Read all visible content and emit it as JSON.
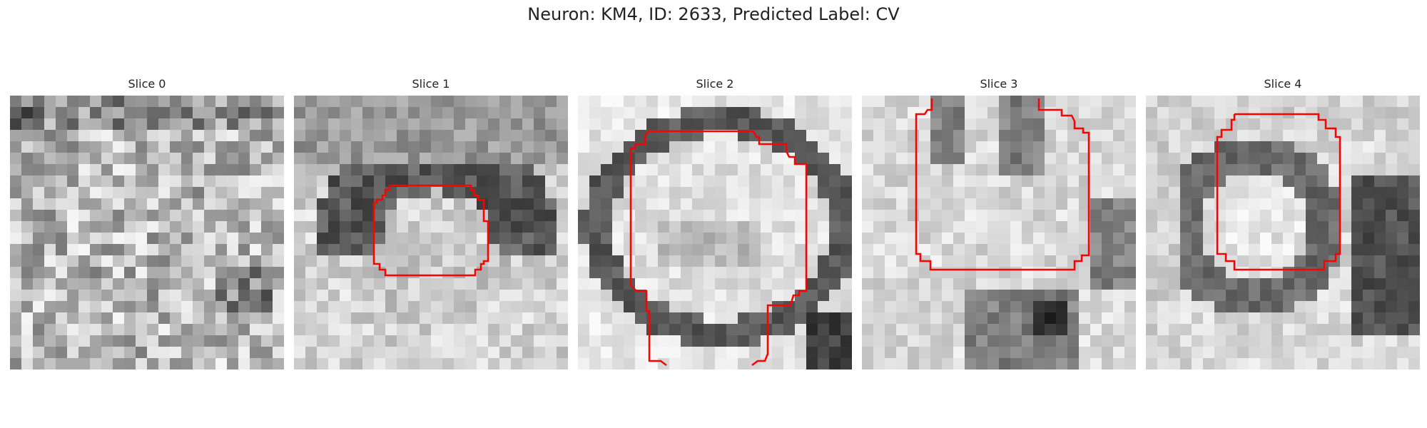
{
  "title": "Neuron: KM4, ID: 2633, Predicted Label: CV",
  "overlay_color": "#ff0000",
  "slices": [
    {
      "label": "Slice 0"
    },
    {
      "label": "Slice 1"
    },
    {
      "label": "Slice 2"
    },
    {
      "label": "Slice 3"
    },
    {
      "label": "Slice 4"
    }
  ]
}
